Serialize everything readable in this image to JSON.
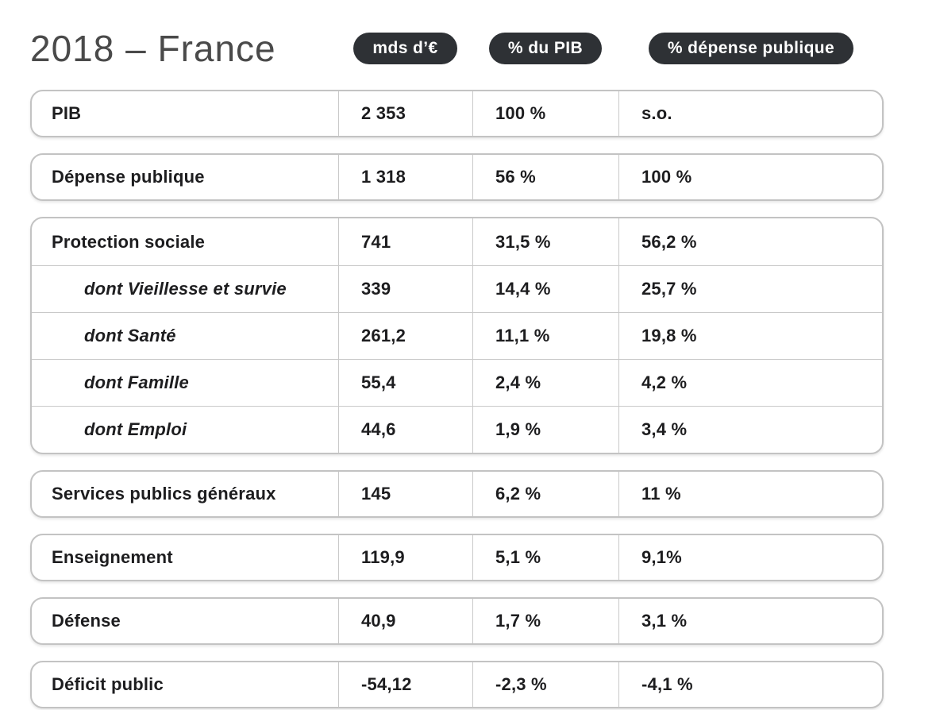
{
  "header": {
    "title": "2018 – France",
    "pills": [
      {
        "label": "mds d’€"
      },
      {
        "label": "% du PIB"
      },
      {
        "label": "% dépense publique"
      }
    ]
  },
  "table": {
    "groups": [
      {
        "rows": [
          {
            "label": "PIB",
            "indent": false,
            "values": [
              "2 353",
              "100 %",
              "s.o."
            ]
          }
        ]
      },
      {
        "rows": [
          {
            "label": "Dépense publique",
            "indent": false,
            "values": [
              "1 318",
              "56 %",
              "100 %"
            ]
          }
        ]
      },
      {
        "rows": [
          {
            "label": "Protection sociale",
            "indent": false,
            "values": [
              "741",
              "31,5 %",
              "56,2 %"
            ]
          },
          {
            "label": "dont Vieillesse et survie",
            "indent": true,
            "values": [
              "339",
              "14,4 %",
              "25,7 %"
            ]
          },
          {
            "label": "dont Santé",
            "indent": true,
            "values": [
              "261,2",
              "11,1 %",
              "19,8 %"
            ]
          },
          {
            "label": "dont Famille",
            "indent": true,
            "values": [
              "55,4",
              "2,4 %",
              "4,2 %"
            ]
          },
          {
            "label": "dont Emploi",
            "indent": true,
            "values": [
              "44,6",
              "1,9 %",
              "3,4 %"
            ]
          }
        ]
      },
      {
        "rows": [
          {
            "label": "Services publics généraux",
            "indent": false,
            "values": [
              "145",
              "6,2 %",
              "11 %"
            ]
          }
        ]
      },
      {
        "rows": [
          {
            "label": "Enseignement",
            "indent": false,
            "values": [
              "119,9",
              "5,1 %",
              "9,1%"
            ]
          }
        ]
      },
      {
        "rows": [
          {
            "label": "Défense",
            "indent": false,
            "values": [
              "40,9",
              "1,7 %",
              "3,1 %"
            ]
          }
        ]
      },
      {
        "rows": [
          {
            "label": "Déficit public",
            "indent": false,
            "values": [
              "-54,12",
              "-2,3 %",
              "-4,1 %"
            ]
          }
        ]
      }
    ]
  },
  "chart_data": {
    "type": "table",
    "title": "2018 – France",
    "columns": [
      "",
      "mds d’€",
      "% du PIB",
      "% dépense publique"
    ],
    "rows": [
      [
        "PIB",
        "2 353",
        "100 %",
        "s.o."
      ],
      [
        "Dépense publique",
        "1 318",
        "56 %",
        "100 %"
      ],
      [
        "Protection sociale",
        "741",
        "31,5 %",
        "56,2 %"
      ],
      [
        "dont Vieillesse et survie",
        "339",
        "14,4 %",
        "25,7 %"
      ],
      [
        "dont Santé",
        "261,2",
        "11,1 %",
        "19,8 %"
      ],
      [
        "dont Famille",
        "55,4",
        "2,4 %",
        "4,2 %"
      ],
      [
        "dont Emploi",
        "44,6",
        "1,9 %",
        "3,4 %"
      ],
      [
        "Services publics généraux",
        "145",
        "6,2 %",
        "11 %"
      ],
      [
        "Enseignement",
        "119,9",
        "5,1 %",
        "9,1%"
      ],
      [
        "Défense",
        "40,9",
        "1,7 %",
        "3,1 %"
      ],
      [
        "Déficit public",
        "-54,12",
        "-2,3 %",
        "-4,1 %"
      ]
    ],
    "layout": {
      "grouped_sub_rows_of": "Protection sociale",
      "sub_rows_style": "italic-indented"
    }
  },
  "colors": {
    "pill_background": "#2e3135",
    "pill_text": "#ffffff",
    "box_border": "#c3c3c3",
    "divider": "#c9c9c9",
    "text": "#1d1d1f",
    "title_text": "#4a4a4a",
    "background": "#ffffff"
  }
}
